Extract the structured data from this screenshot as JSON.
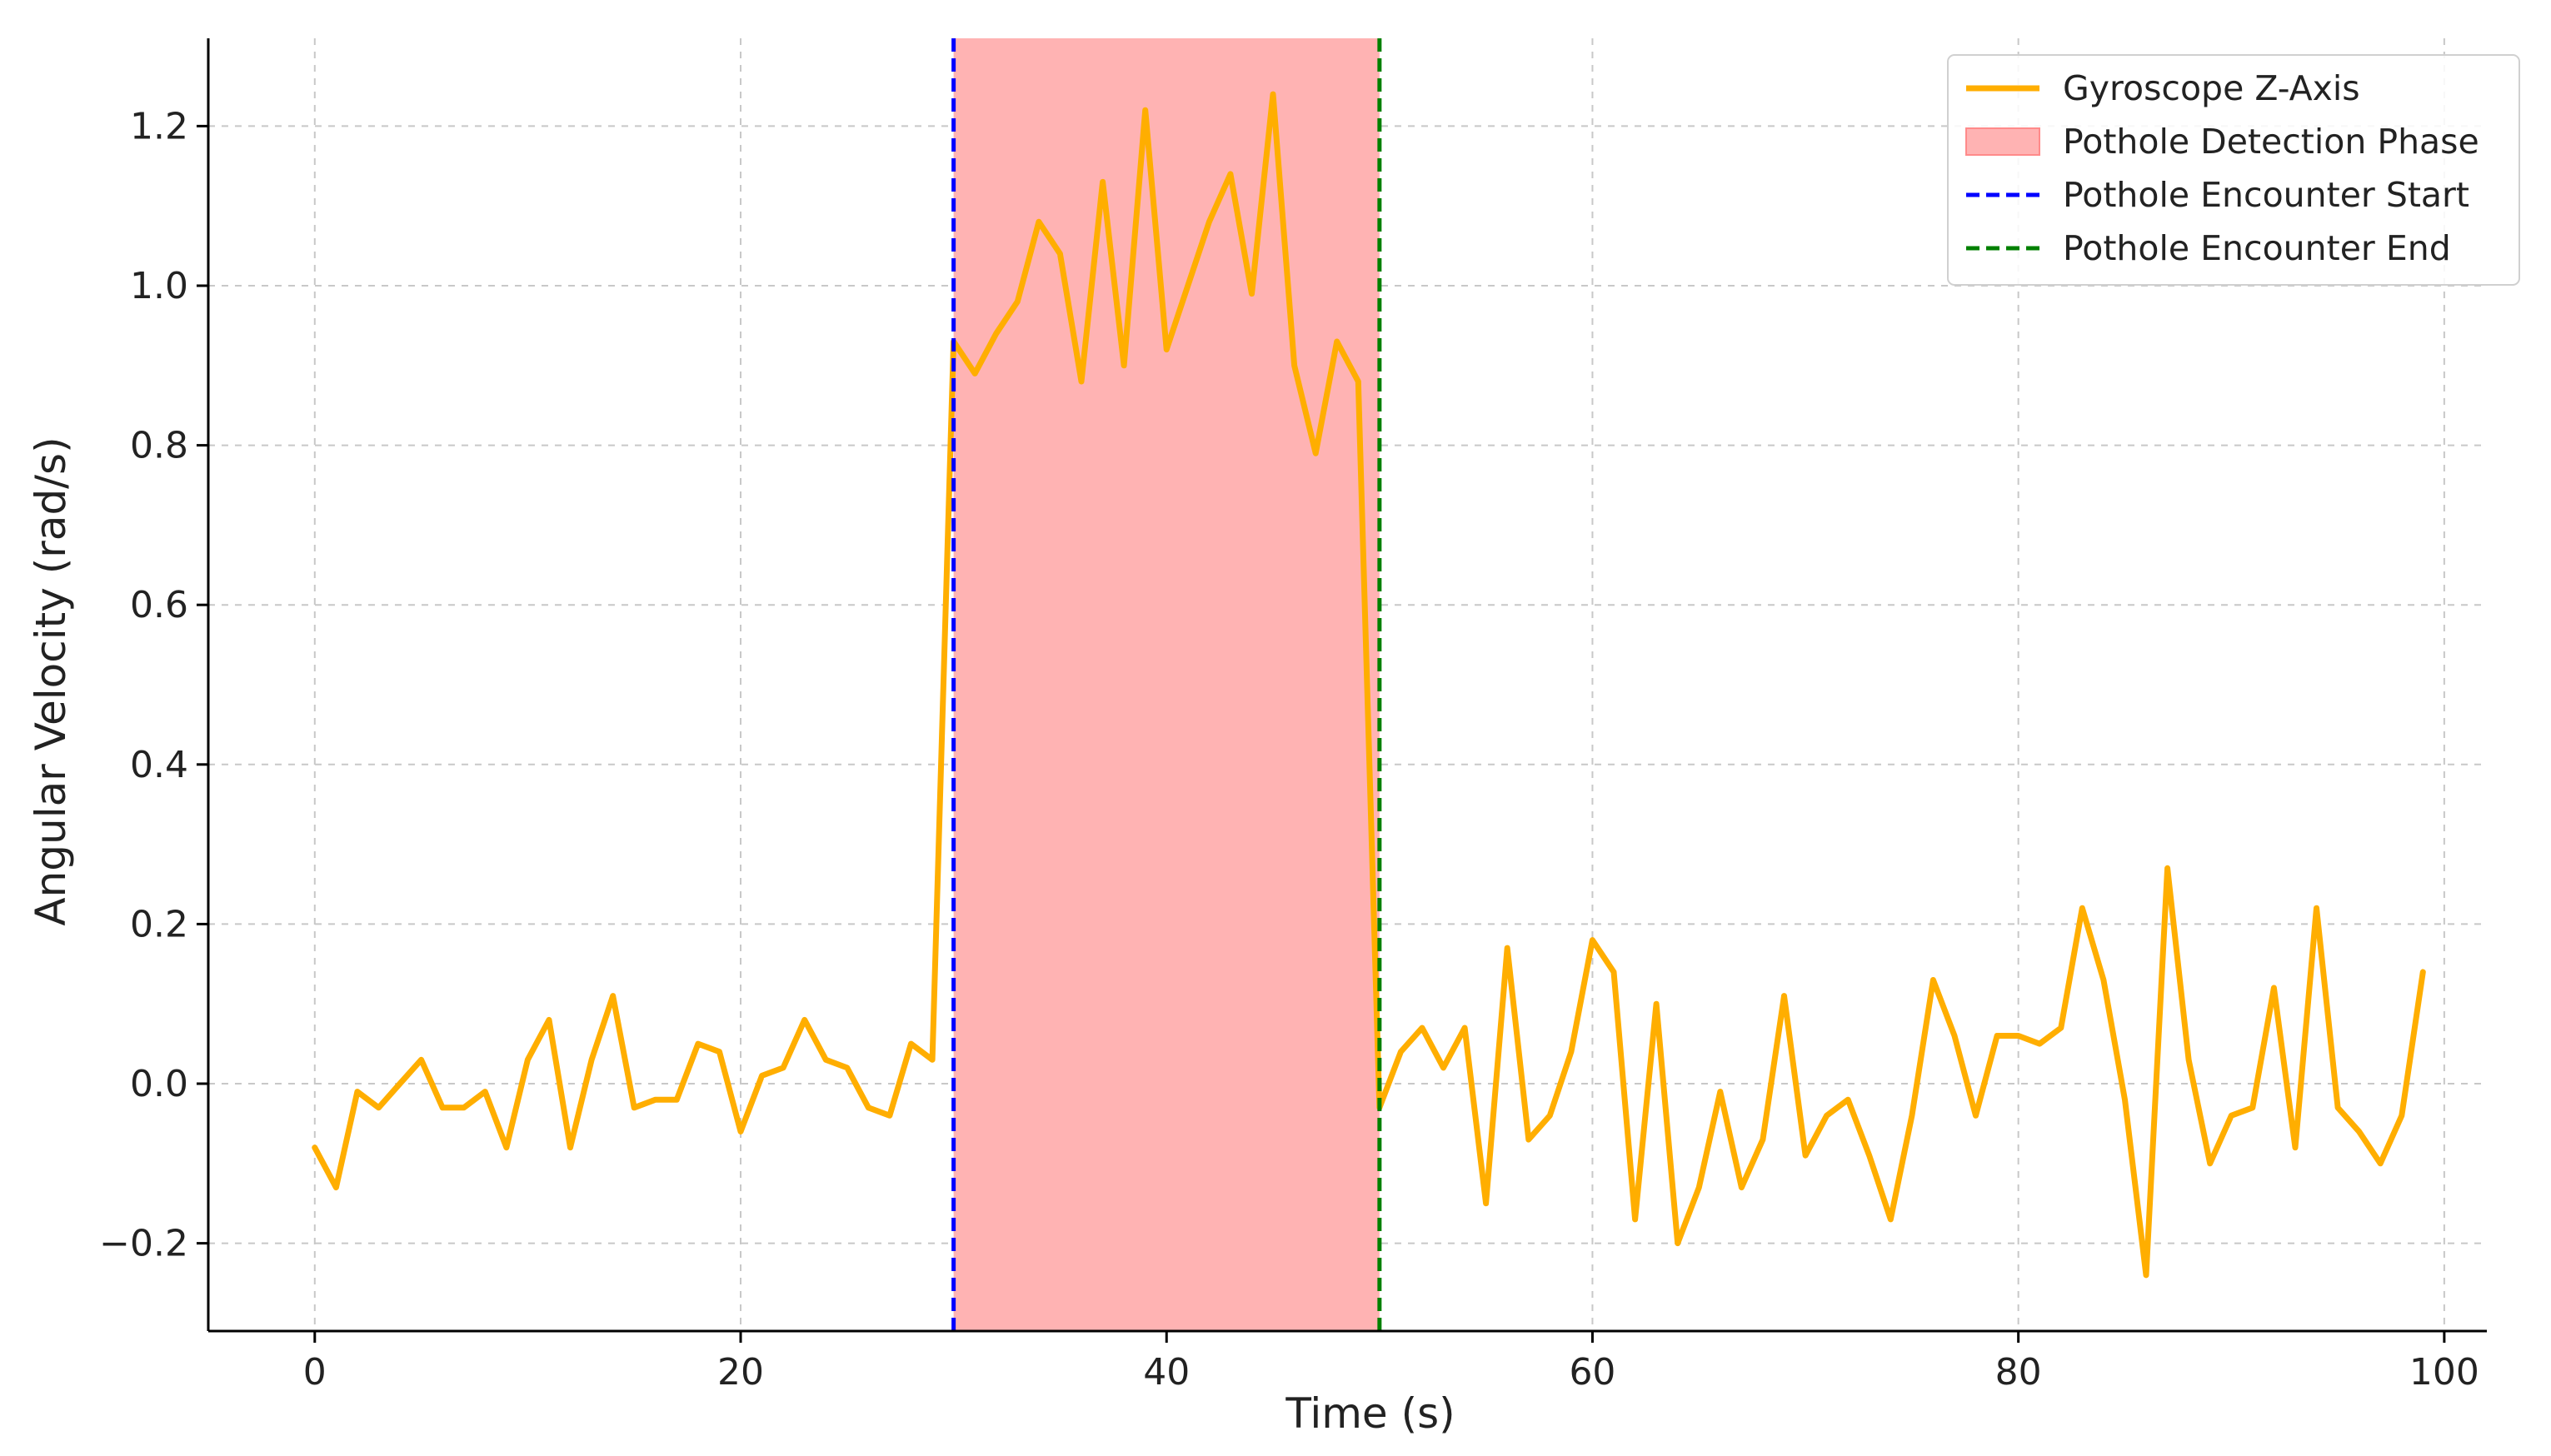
{
  "chart_data": {
    "type": "line",
    "xlabel": "Time (s)",
    "ylabel": "Angular Velocity (rad/s)",
    "xlim": [
      -5,
      102
    ],
    "ylim": [
      -0.31,
      1.31
    ],
    "xticks": [
      0,
      20,
      40,
      60,
      80,
      100
    ],
    "yticks": [
      -0.2,
      0.0,
      0.2,
      0.4,
      0.6,
      0.8,
      1.0,
      1.2
    ],
    "xtick_labels": [
      "0",
      "20",
      "40",
      "60",
      "80",
      "100"
    ],
    "ytick_labels": [
      "−0.2",
      "0.0",
      "0.2",
      "0.4",
      "0.6",
      "0.8",
      "1.0",
      "1.2"
    ],
    "grid": true,
    "legend_position": "top-right",
    "series": [
      {
        "name": "Gyroscope Z-Axis",
        "color": "#ffae00",
        "x": [
          0,
          1,
          2,
          3,
          4,
          5,
          6,
          7,
          8,
          9,
          10,
          11,
          12,
          13,
          14,
          15,
          16,
          17,
          18,
          19,
          20,
          21,
          22,
          23,
          24,
          25,
          26,
          27,
          28,
          29,
          30,
          31,
          32,
          33,
          34,
          35,
          36,
          37,
          38,
          39,
          40,
          41,
          42,
          43,
          44,
          45,
          46,
          47,
          48,
          49,
          50,
          51,
          52,
          53,
          54,
          55,
          56,
          57,
          58,
          59,
          60,
          61,
          62,
          63,
          64,
          65,
          66,
          67,
          68,
          69,
          70,
          71,
          72,
          73,
          74,
          75,
          76,
          77,
          78,
          79,
          80,
          81,
          82,
          83,
          84,
          85,
          86,
          87,
          88,
          89,
          90,
          91,
          92,
          93,
          94,
          95,
          96,
          97,
          98,
          99
        ],
        "y": [
          -0.08,
          -0.13,
          -0.01,
          -0.03,
          0.0,
          0.03,
          -0.03,
          -0.03,
          -0.01,
          -0.08,
          0.03,
          0.08,
          -0.08,
          0.03,
          0.11,
          -0.03,
          -0.02,
          -0.02,
          0.05,
          0.04,
          -0.06,
          0.01,
          0.02,
          0.08,
          0.03,
          0.02,
          -0.03,
          -0.04,
          0.05,
          0.03,
          0.93,
          0.89,
          0.94,
          0.98,
          1.08,
          1.04,
          0.88,
          1.13,
          0.9,
          1.22,
          0.92,
          1.0,
          1.08,
          1.14,
          0.99,
          1.24,
          0.9,
          0.79,
          0.93,
          0.88,
          -0.03,
          0.04,
          0.07,
          0.02,
          0.07,
          -0.15,
          0.17,
          -0.07,
          -0.04,
          0.04,
          0.18,
          0.14,
          -0.17,
          0.1,
          -0.2,
          -0.13,
          -0.01,
          -0.13,
          -0.07,
          0.11,
          -0.09,
          -0.04,
          -0.02,
          -0.09,
          -0.17,
          -0.04,
          0.13,
          0.06,
          -0.04,
          0.06,
          0.06,
          0.05,
          0.07,
          0.22,
          0.13,
          -0.02,
          -0.24,
          0.27,
          0.03,
          -0.1,
          -0.04,
          -0.03,
          0.12,
          -0.08,
          0.22,
          -0.03,
          -0.06,
          -0.1,
          -0.04,
          0.14
        ]
      }
    ],
    "shaded_region": {
      "name": "Pothole Detection Phase",
      "x0": 30,
      "x1": 50,
      "color": "#ffb3b3"
    },
    "vlines": [
      {
        "name": "Pothole Encounter Start",
        "x": 30,
        "color": "#0000ff"
      },
      {
        "name": "Pothole Encounter End",
        "x": 50,
        "color": "#008000"
      }
    ],
    "legend": [
      {
        "label": "Gyroscope Z-Axis",
        "kind": "line",
        "color": "#ffae00"
      },
      {
        "label": "Pothole Detection Phase",
        "kind": "patch",
        "color": "#ffb3b3"
      },
      {
        "label": "Pothole Encounter Start",
        "kind": "dashed",
        "color": "#0000ff"
      },
      {
        "label": "Pothole Encounter End",
        "kind": "dashed",
        "color": "#008000"
      }
    ]
  }
}
